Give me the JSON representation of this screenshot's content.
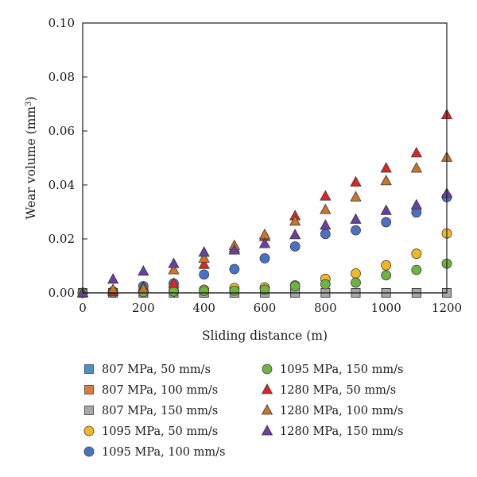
{
  "chart_data": {
    "type": "scatter",
    "xlabel": "Sliding distance (m)",
    "ylabel": "Wear volume (mm",
    "ylabel_sup": "3",
    "ylabel_close": ")",
    "xlim": [
      0,
      1200
    ],
    "ylim": [
      0,
      0.1
    ],
    "x_ticks": [
      "0",
      "200",
      "400",
      "600",
      "800",
      "1000",
      "1200"
    ],
    "y_ticks": [
      "0.00",
      "0.02",
      "0.04",
      "0.06",
      "0.08",
      "0.10"
    ],
    "grid": false,
    "legend_position": "bottom",
    "x": [
      0,
      100,
      200,
      300,
      400,
      500,
      600,
      700,
      800,
      900,
      1000,
      1100,
      1200
    ],
    "series": [
      {
        "name": "807 MPa, 50 mm/s",
        "marker": "square",
        "color": "#4a90c9",
        "values": [
          0,
          0,
          0,
          0,
          0,
          0,
          0,
          0,
          0,
          0,
          0,
          0,
          0
        ]
      },
      {
        "name": "807 MPa, 100 mm/s",
        "marker": "square",
        "color": "#e07a3a",
        "values": [
          0,
          0,
          0,
          0,
          0,
          0,
          0,
          0,
          0,
          0,
          0,
          0,
          0
        ]
      },
      {
        "name": "807 MPa, 150 mm/s",
        "marker": "square",
        "color": "#a8a8a8",
        "values": [
          0,
          0,
          0,
          0,
          0,
          0,
          0,
          0,
          0,
          0,
          0,
          0,
          0
        ]
      },
      {
        "name": "1095 MPa, 50 mm/s",
        "marker": "circle",
        "color": "#f2b824",
        "values": [
          0,
          0.0005,
          0.0005,
          0.0008,
          0.0012,
          0.0018,
          0.002,
          0.0028,
          0.0052,
          0.0072,
          0.0102,
          0.0145,
          0.022
        ]
      },
      {
        "name": "1095 MPa, 100 mm/s",
        "marker": "circle",
        "color": "#4a72c4",
        "values": [
          0,
          0.0005,
          0.0025,
          0.0035,
          0.0068,
          0.0088,
          0.0128,
          0.0172,
          0.0218,
          0.0232,
          0.0262,
          0.0298,
          0.0355
        ]
      },
      {
        "name": "1095 MPa, 150 mm/s",
        "marker": "circle",
        "color": "#6db33f",
        "values": [
          0,
          0.0002,
          0.0003,
          0.0005,
          0.0007,
          0.0008,
          0.0012,
          0.0025,
          0.0032,
          0.0038,
          0.0065,
          0.0085,
          0.0108
        ]
      },
      {
        "name": "1280 MPa, 50 mm/s",
        "marker": "triangle",
        "color": "#dd2525",
        "values": [
          0,
          0.0005,
          0.002,
          0.0035,
          0.0105,
          0.0165,
          0.0208,
          0.0285,
          0.0358,
          0.041,
          0.0462,
          0.0518,
          0.066
        ]
      },
      {
        "name": "1280 MPa, 100 mm/s",
        "marker": "triangle",
        "color": "#c8742a",
        "values": [
          0,
          0.0012,
          0.0015,
          0.0085,
          0.0128,
          0.0175,
          0.0215,
          0.0265,
          0.0308,
          0.0355,
          0.0415,
          0.0462,
          0.0502
        ]
      },
      {
        "name": "1280 MPa, 150 mm/s",
        "marker": "triangle",
        "color": "#6a3fa0",
        "values": [
          0,
          0.005,
          0.008,
          0.0108,
          0.015,
          0.0158,
          0.0182,
          0.0215,
          0.025,
          0.0272,
          0.0305,
          0.0325,
          0.0368
        ]
      }
    ]
  }
}
